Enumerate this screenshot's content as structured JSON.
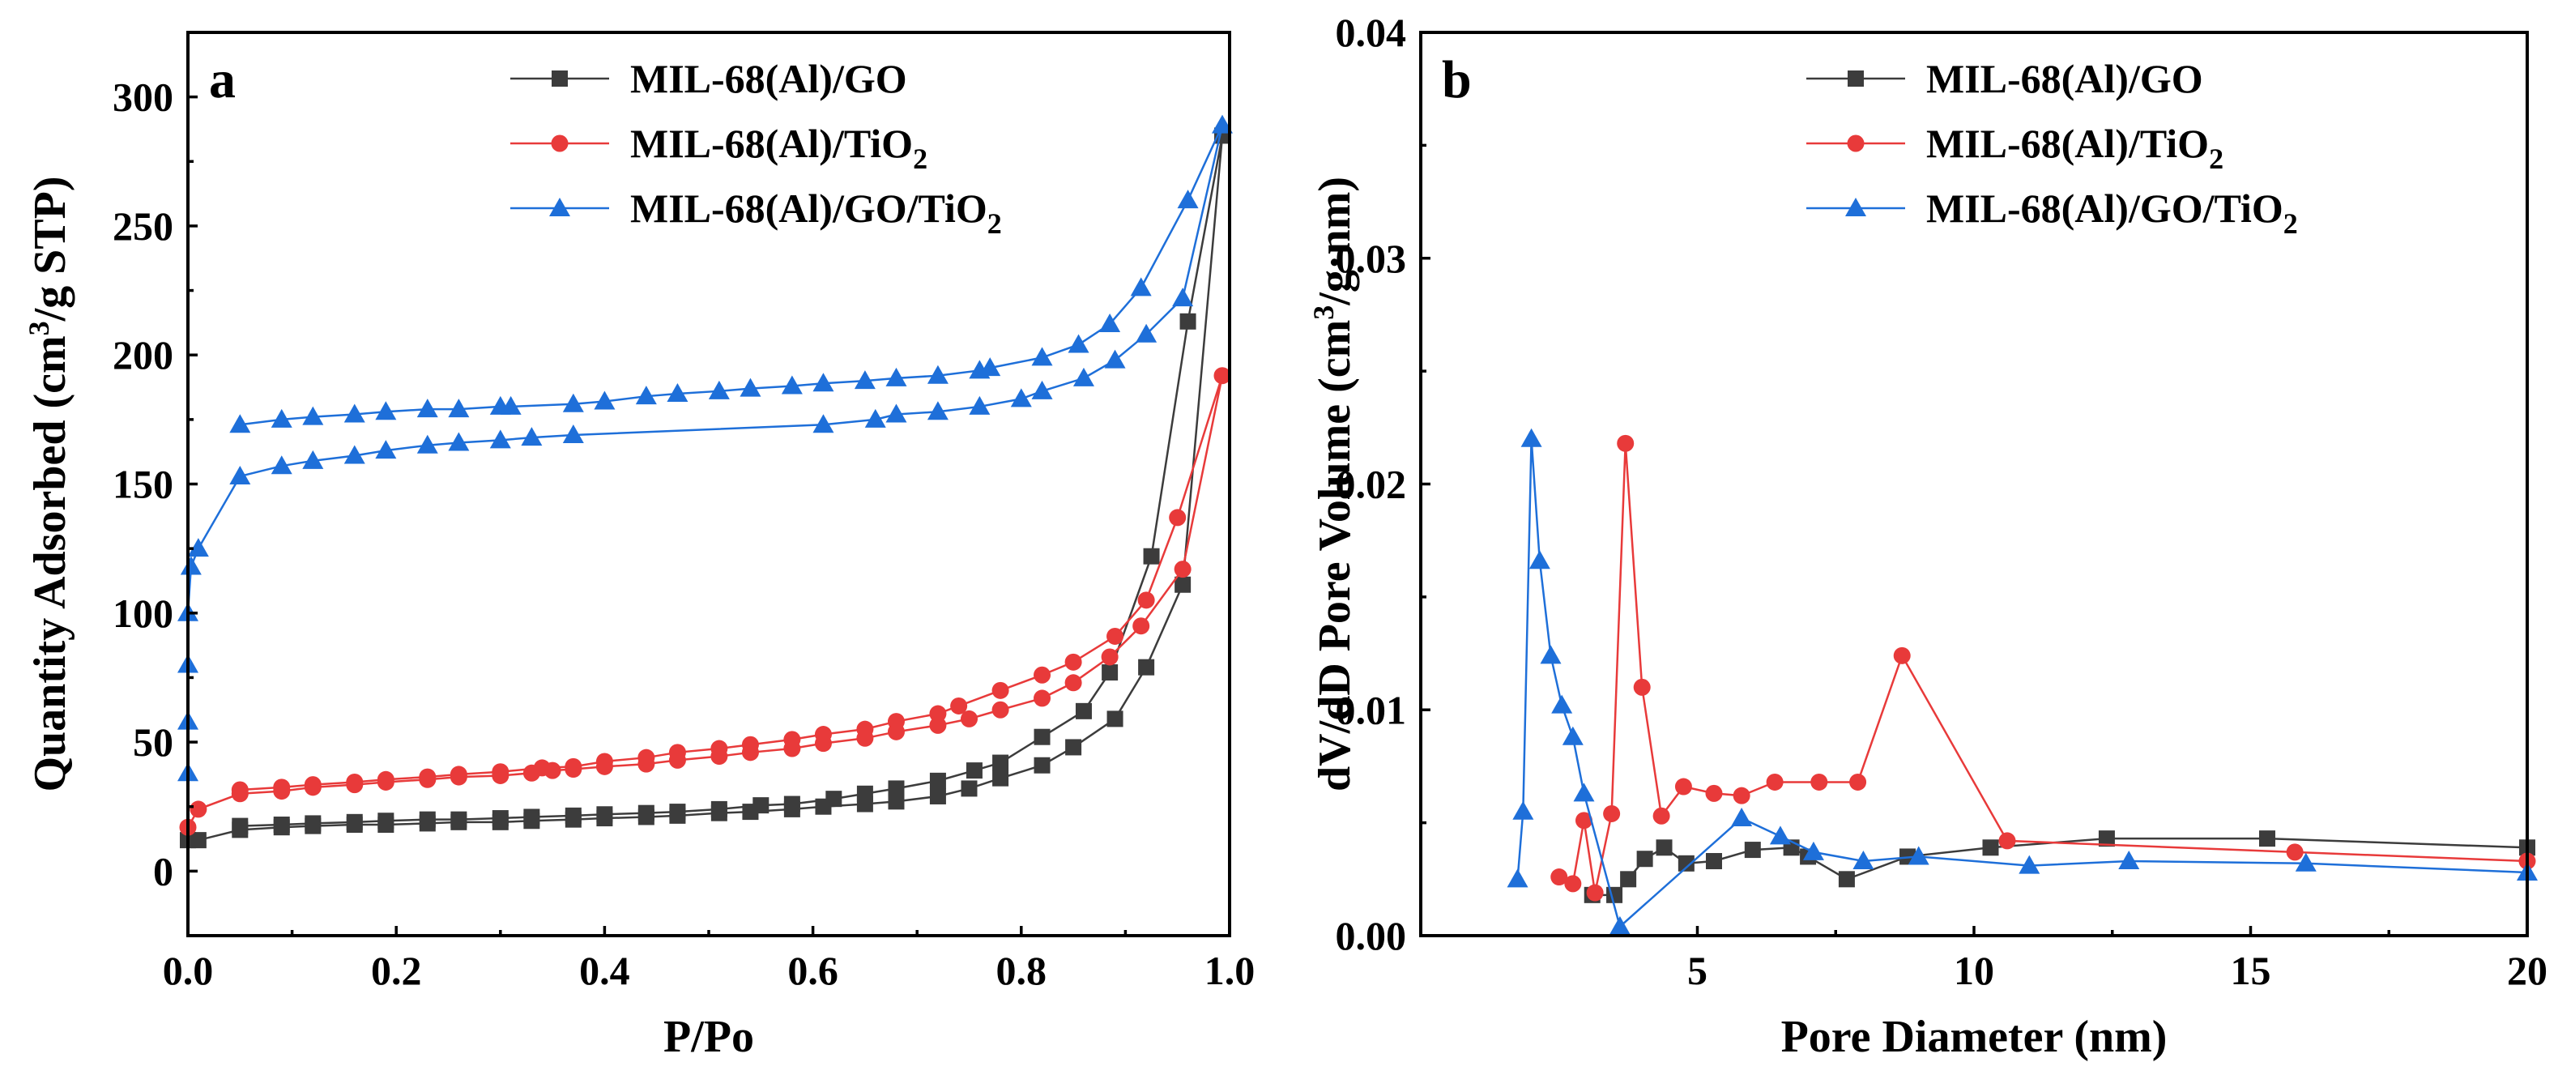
{
  "chart_data": [
    {
      "type": "line",
      "panel_label": "a",
      "title": "",
      "xlabel": "P/Po",
      "ylabel_main": "Quantity Adsorbed (cm",
      "ylabel_sup": "3",
      "ylabel_tail": "/g STP)",
      "xlim": [
        0.0,
        1.0
      ],
      "ylim": [
        -25,
        325
      ],
      "xticks": [
        0.0,
        0.2,
        0.4,
        0.6,
        0.8,
        1.0
      ],
      "xtick_labels": [
        "0.0",
        "0.2",
        "0.4",
        "0.6",
        "0.8",
        "1.0"
      ],
      "yticks": [
        0,
        50,
        100,
        150,
        200,
        250,
        300
      ],
      "ytick_labels": [
        "0",
        "50",
        "100",
        "150",
        "200",
        "250",
        "300"
      ],
      "legend_position": "top-center",
      "series": [
        {
          "name": "MIL-68(Al)/GO",
          "legend_main": "MIL-68(Al)/GO",
          "legend_sub": "",
          "color": "#3c3c3c",
          "marker": "square",
          "points": [
            [
              0.0,
              12
            ],
            [
              0.01,
              12
            ],
            [
              0.05,
              16
            ],
            [
              0.09,
              17
            ],
            [
              0.12,
              17.5
            ],
            [
              0.16,
              18
            ],
            [
              0.19,
              18
            ],
            [
              0.23,
              18.5
            ],
            [
              0.26,
              19
            ],
            [
              0.3,
              19
            ],
            [
              0.33,
              19.5
            ],
            [
              0.37,
              20
            ],
            [
              0.4,
              20.5
            ],
            [
              0.44,
              21
            ],
            [
              0.47,
              21.5
            ],
            [
              0.51,
              22.5
            ],
            [
              0.54,
              23
            ],
            [
              0.58,
              24
            ],
            [
              0.61,
              25
            ],
            [
              0.65,
              26
            ],
            [
              0.68,
              27
            ],
            [
              0.72,
              29
            ],
            [
              0.75,
              32
            ],
            [
              0.78,
              36
            ],
            [
              0.82,
              41
            ],
            [
              0.85,
              48
            ],
            [
              0.89,
              59
            ],
            [
              0.92,
              79
            ],
            [
              0.955,
              111
            ],
            [
              0.993,
              285
            ],
            [
              0.96,
              213
            ],
            [
              0.925,
              122
            ],
            [
              0.885,
              77
            ],
            [
              0.86,
              62
            ],
            [
              0.82,
              52
            ],
            [
              0.78,
              42
            ],
            [
              0.755,
              39
            ],
            [
              0.72,
              35
            ],
            [
              0.68,
              32
            ],
            [
              0.65,
              30
            ],
            [
              0.62,
              28
            ],
            [
              0.58,
              26
            ],
            [
              0.55,
              25.5
            ],
            [
              0.51,
              24
            ],
            [
              0.47,
              23
            ],
            [
              0.44,
              22.5
            ],
            [
              0.4,
              22
            ],
            [
              0.37,
              21.5
            ],
            [
              0.33,
              21
            ],
            [
              0.3,
              20.5
            ],
            [
              0.26,
              20
            ],
            [
              0.23,
              20
            ],
            [
              0.19,
              19.5
            ],
            [
              0.16,
              19
            ],
            [
              0.12,
              18.5
            ],
            [
              0.09,
              18
            ],
            [
              0.05,
              17.5
            ]
          ]
        },
        {
          "name": "MIL-68(Al)/TiO2",
          "legend_main": "MIL-68(Al)/TiO",
          "legend_sub": "2",
          "color": "#e83a3a",
          "marker": "circle",
          "points": [
            [
              0.0,
              17
            ],
            [
              0.01,
              24
            ],
            [
              0.05,
              30
            ],
            [
              0.09,
              31
            ],
            [
              0.12,
              32.5
            ],
            [
              0.16,
              33.5
            ],
            [
              0.19,
              34.5
            ],
            [
              0.23,
              35.5
            ],
            [
              0.26,
              36.5
            ],
            [
              0.3,
              37
            ],
            [
              0.33,
              38
            ],
            [
              0.35,
              39
            ],
            [
              0.37,
              39.5
            ],
            [
              0.4,
              40.5
            ],
            [
              0.44,
              41.5
            ],
            [
              0.47,
              43
            ],
            [
              0.51,
              44.5
            ],
            [
              0.54,
              46
            ],
            [
              0.58,
              47.5
            ],
            [
              0.61,
              49.5
            ],
            [
              0.65,
              51.5
            ],
            [
              0.68,
              54
            ],
            [
              0.72,
              56.5
            ],
            [
              0.75,
              59
            ],
            [
              0.78,
              62.5
            ],
            [
              0.82,
              67
            ],
            [
              0.85,
              73
            ],
            [
              0.885,
              83
            ],
            [
              0.915,
              95
            ],
            [
              0.955,
              117
            ],
            [
              0.993,
              192
            ],
            [
              0.95,
              137
            ],
            [
              0.92,
              105
            ],
            [
              0.89,
              91
            ],
            [
              0.85,
              81
            ],
            [
              0.82,
              76
            ],
            [
              0.78,
              70
            ],
            [
              0.74,
              64
            ],
            [
              0.72,
              61
            ],
            [
              0.68,
              58
            ],
            [
              0.65,
              55
            ],
            [
              0.61,
              53
            ],
            [
              0.58,
              51
            ],
            [
              0.54,
              49
            ],
            [
              0.51,
              47.5
            ],
            [
              0.47,
              46
            ],
            [
              0.44,
              44
            ],
            [
              0.4,
              42.5
            ],
            [
              0.37,
              40.5
            ],
            [
              0.34,
              40
            ],
            [
              0.3,
              38.5
            ],
            [
              0.26,
              37.5
            ],
            [
              0.23,
              36.5
            ],
            [
              0.19,
              35.5
            ],
            [
              0.16,
              34.5
            ],
            [
              0.12,
              33.5
            ],
            [
              0.09,
              32.5
            ],
            [
              0.05,
              31.5
            ]
          ]
        },
        {
          "name": "MIL-68(Al)/GO/TiO2",
          "legend_main": "MIL-68(Al)/GO/TiO",
          "legend_sub": "2",
          "color": "#1e6fd9",
          "marker": "triangle",
          "points": [
            [
              0.0,
              38
            ],
            [
              0.0,
              58
            ],
            [
              0.0,
              80
            ],
            [
              0.0,
              100
            ],
            [
              0.003,
              118
            ],
            [
              0.01,
              125
            ],
            [
              0.05,
              153
            ],
            [
              0.09,
              157
            ],
            [
              0.12,
              159
            ],
            [
              0.16,
              161
            ],
            [
              0.19,
              163
            ],
            [
              0.23,
              165
            ],
            [
              0.26,
              166
            ],
            [
              0.3,
              167
            ],
            [
              0.33,
              168
            ],
            [
              0.37,
              169
            ],
            [
              0.61,
              173
            ],
            [
              0.66,
              175
            ],
            [
              0.68,
              177
            ],
            [
              0.72,
              178
            ],
            [
              0.76,
              180
            ],
            [
              0.8,
              183
            ],
            [
              0.82,
              186
            ],
            [
              0.86,
              191
            ],
            [
              0.89,
              198
            ],
            [
              0.92,
              208
            ],
            [
              0.955,
              222
            ],
            [
              0.993,
              289
            ],
            [
              0.96,
              260
            ],
            [
              0.915,
              226
            ],
            [
              0.885,
              212
            ],
            [
              0.855,
              204
            ],
            [
              0.82,
              199
            ],
            [
              0.77,
              195
            ],
            [
              0.76,
              194
            ],
            [
              0.72,
              192
            ],
            [
              0.68,
              191
            ],
            [
              0.65,
              190
            ],
            [
              0.61,
              189
            ],
            [
              0.58,
              188
            ],
            [
              0.54,
              187
            ],
            [
              0.51,
              186
            ],
            [
              0.47,
              185
            ],
            [
              0.44,
              184
            ],
            [
              0.4,
              182
            ],
            [
              0.37,
              181
            ],
            [
              0.31,
              180
            ],
            [
              0.3,
              180
            ],
            [
              0.26,
              179
            ],
            [
              0.23,
              179
            ],
            [
              0.19,
              178
            ],
            [
              0.16,
              177
            ],
            [
              0.12,
              176
            ],
            [
              0.09,
              175
            ],
            [
              0.05,
              173
            ]
          ]
        }
      ]
    },
    {
      "type": "line",
      "panel_label": "b",
      "title": "",
      "xlabel": "Pore Diameter (nm)",
      "ylabel_main": "dV/dD Pore Volume (cm",
      "ylabel_sup": "3",
      "ylabel_tail": "/g·nm)",
      "xlim": [
        0,
        20
      ],
      "ylim": [
        0.0,
        0.04
      ],
      "xticks": [
        5,
        10,
        15,
        20
      ],
      "xtick_labels": [
        "5",
        "10",
        "15",
        "20"
      ],
      "yticks": [
        0.0,
        0.01,
        0.02,
        0.03,
        0.04
      ],
      "ytick_labels": [
        "0.00",
        "0.01",
        "0.02",
        "0.03",
        "0.04"
      ],
      "legend_position": "top-right",
      "series": [
        {
          "name": "MIL-68(Al)/GO",
          "legend_main": "MIL-68(Al)/GO",
          "legend_sub": "",
          "color": "#3c3c3c",
          "marker": "square",
          "points": [
            [
              3.1,
              0.0018
            ],
            [
              3.5,
              0.0018
            ],
            [
              3.75,
              0.0025
            ],
            [
              4.05,
              0.0034
            ],
            [
              4.4,
              0.0039
            ],
            [
              4.8,
              0.0032
            ],
            [
              5.3,
              0.0033
            ],
            [
              6.0,
              0.0038
            ],
            [
              6.7,
              0.0039
            ],
            [
              7.0,
              0.0035
            ],
            [
              7.7,
              0.0025
            ],
            [
              8.8,
              0.0035
            ],
            [
              10.3,
              0.0039
            ],
            [
              12.4,
              0.0043
            ],
            [
              15.3,
              0.0043
            ],
            [
              20,
              0.0039
            ]
          ]
        },
        {
          "name": "MIL-68(Al)/TiO2",
          "legend_main": "MIL-68(Al)/TiO",
          "legend_sub": "2",
          "color": "#e83a3a",
          "marker": "circle",
          "points": [
            [
              2.5,
              0.0026
            ],
            [
              2.75,
              0.0023
            ],
            [
              2.95,
              0.0051
            ],
            [
              3.15,
              0.0019
            ],
            [
              3.45,
              0.0054
            ],
            [
              3.7,
              0.0218
            ],
            [
              4.0,
              0.011
            ],
            [
              4.35,
              0.0053
            ],
            [
              4.75,
              0.0066
            ],
            [
              5.3,
              0.0063
            ],
            [
              5.8,
              0.0062
            ],
            [
              6.4,
              0.0068
            ],
            [
              7.2,
              0.0068
            ],
            [
              7.9,
              0.0068
            ],
            [
              8.7,
              0.0124
            ],
            [
              10.6,
              0.0042
            ],
            [
              15.8,
              0.0037
            ],
            [
              20,
              0.0033
            ]
          ]
        },
        {
          "name": "MIL-68(Al)/GO/TiO2",
          "legend_main": "MIL-68(Al)/GO/TiO",
          "legend_sub": "2",
          "color": "#1e6fd9",
          "marker": "triangle",
          "points": [
            [
              1.75,
              0.0025
            ],
            [
              1.85,
              0.0055
            ],
            [
              2.0,
              0.022
            ],
            [
              2.15,
              0.0166
            ],
            [
              2.35,
              0.0124
            ],
            [
              2.55,
              0.0102
            ],
            [
              2.75,
              0.0088
            ],
            [
              2.95,
              0.0063
            ],
            [
              3.6,
              0.0004
            ],
            [
              5.8,
              0.0052
            ],
            [
              6.5,
              0.0044
            ],
            [
              7.1,
              0.0037
            ],
            [
              8.0,
              0.0033
            ],
            [
              9.0,
              0.0035
            ],
            [
              11.0,
              0.0031
            ],
            [
              12.8,
              0.0033
            ],
            [
              16.0,
              0.0032
            ],
            [
              20,
              0.0028
            ]
          ]
        }
      ]
    }
  ]
}
